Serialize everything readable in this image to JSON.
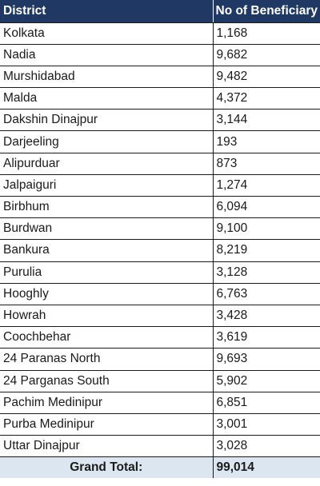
{
  "table": {
    "headers": [
      "District",
      "No of Beneficiary"
    ],
    "rows": [
      [
        "Kolkata",
        "1,168"
      ],
      [
        "Nadia",
        "9,682"
      ],
      [
        "Murshidabad",
        "9,482"
      ],
      [
        "Malda",
        "4,372"
      ],
      [
        "Dakshin Dinajpur",
        "3,144"
      ],
      [
        "Darjeeling",
        "193"
      ],
      [
        "Alipurduar",
        "873"
      ],
      [
        "Jalpaiguri",
        "1,274"
      ],
      [
        "Birbhum",
        "6,094"
      ],
      [
        "Burdwan",
        "9,100"
      ],
      [
        "Bankura",
        "8,219"
      ],
      [
        "Purulia",
        "3,128"
      ],
      [
        "Hooghly",
        "6,763"
      ],
      [
        "Howrah",
        "3,428"
      ],
      [
        "Coochbehar",
        "3,619"
      ],
      [
        "24 Paranas North",
        "9,693"
      ],
      [
        "24 Parganas South",
        "5,902"
      ],
      [
        "Pachim Medinipur",
        "6,851"
      ],
      [
        "Purba Medinipur",
        "3,001"
      ],
      [
        "Uttar Dinajpur",
        "3,028"
      ]
    ],
    "total": {
      "label": "Grand Total:",
      "value": "99,014"
    }
  },
  "colors": {
    "header_bg": "#1f3864",
    "header_text": "#ffffff",
    "total_bg": "#dce6f1"
  }
}
